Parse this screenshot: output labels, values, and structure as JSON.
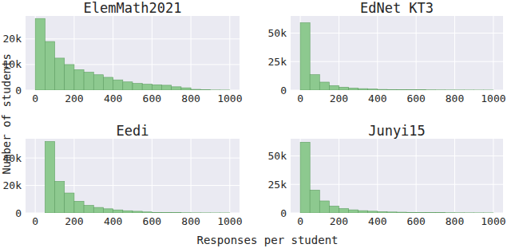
{
  "chart_data": [
    {
      "type": "histogram",
      "title": "ElemMath2021",
      "color": "#8dc98f",
      "grid": true,
      "bins": [
        0,
        50,
        100,
        150,
        200,
        250,
        300,
        350,
        400,
        450,
        500,
        550,
        600,
        650,
        700,
        750,
        800,
        850,
        900,
        950,
        1000
      ],
      "values": [
        28000,
        19000,
        12500,
        10000,
        8000,
        7000,
        6000,
        5000,
        4000,
        3200,
        2600,
        2300,
        2100,
        1900,
        1300,
        900,
        300,
        100,
        50,
        30
      ],
      "xlim": [
        -50,
        1050
      ],
      "xticks": [
        0,
        200,
        400,
        600,
        800,
        1000
      ],
      "ylim": [
        0,
        29000
      ],
      "yticks": [
        0,
        {
          "value": 10000,
          "label": "10k"
        },
        {
          "value": 20000,
          "label": "20k"
        }
      ]
    },
    {
      "type": "histogram",
      "title": "EdNet KT3",
      "color": "#8dc98f",
      "grid": true,
      "bins": [
        0,
        50,
        100,
        150,
        200,
        250,
        300,
        350,
        400,
        450,
        500,
        550,
        600,
        650,
        700,
        750,
        800,
        850,
        900,
        950,
        1000
      ],
      "values": [
        59000,
        13500,
        7000,
        4000,
        2600,
        1800,
        1300,
        900,
        600,
        500,
        400,
        300,
        250,
        200,
        150,
        120,
        100,
        80,
        60,
        50
      ],
      "xlim": [
        -50,
        1050
      ],
      "xticks": [
        0,
        200,
        400,
        600,
        800,
        1000
      ],
      "ylim": [
        0,
        65000
      ],
      "yticks": [
        0,
        {
          "value": 25000,
          "label": "25k"
        },
        {
          "value": 50000,
          "label": "50k"
        }
      ]
    },
    {
      "type": "histogram",
      "title": "Eedi",
      "color": "#8dc98f",
      "grid": true,
      "bins": [
        0,
        50,
        100,
        150,
        200,
        250,
        300,
        350,
        400,
        450,
        500,
        550,
        600,
        650,
        700,
        750,
        800,
        850,
        900,
        950,
        1000
      ],
      "values": [
        0,
        52000,
        23000,
        14500,
        8500,
        5500,
        4000,
        3000,
        2200,
        1600,
        1200,
        700,
        400,
        300,
        200,
        150,
        100,
        80,
        60,
        50
      ],
      "xlim": [
        -50,
        1050
      ],
      "xticks": [
        0,
        200,
        400,
        600,
        800,
        1000
      ],
      "ylim": [
        0,
        54000
      ],
      "yticks": [
        0,
        {
          "value": 20000,
          "label": "20k"
        },
        {
          "value": 40000,
          "label": "40k"
        }
      ]
    },
    {
      "type": "histogram",
      "title": "Junyi15",
      "color": "#8dc98f",
      "grid": true,
      "bins": [
        0,
        50,
        100,
        150,
        200,
        250,
        300,
        350,
        400,
        450,
        500,
        550,
        600,
        650,
        700,
        750,
        800,
        850,
        900,
        950,
        1000
      ],
      "values": [
        62000,
        20000,
        10500,
        6000,
        3800,
        2700,
        2000,
        1500,
        1100,
        800,
        650,
        500,
        400,
        300,
        250,
        200,
        150,
        120,
        100,
        80
      ],
      "xlim": [
        -50,
        1050
      ],
      "xticks": [
        0,
        200,
        400,
        600,
        800,
        1000
      ],
      "ylim": [
        0,
        65000
      ],
      "yticks": [
        0,
        {
          "value": 25000,
          "label": "25k"
        },
        {
          "value": 50000,
          "label": "50k"
        }
      ]
    }
  ],
  "x_label": "Responses per student",
  "y_label": "Number of students"
}
